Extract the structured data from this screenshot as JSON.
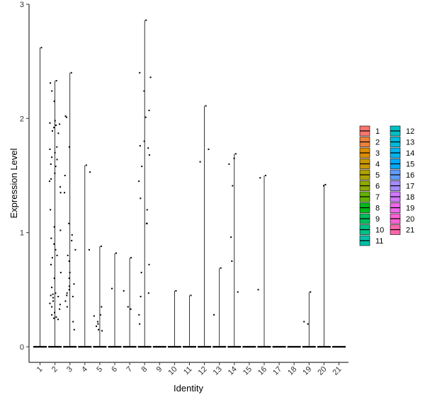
{
  "chart_data": {
    "type": "violin",
    "title": "",
    "xlabel": "Identity",
    "ylabel": "Expression Level",
    "ylim": [
      0,
      3
    ],
    "yticks": [
      0,
      1,
      2,
      3
    ],
    "grid": false,
    "legend_position": "right",
    "categories": [
      "1",
      "2",
      "3",
      "4",
      "5",
      "6",
      "7",
      "8",
      "9",
      "10",
      "11",
      "12",
      "13",
      "14",
      "15",
      "16",
      "17",
      "18",
      "19",
      "20",
      "21"
    ],
    "colors": [
      "#F8766D",
      "#EC8239",
      "#DB8E00",
      "#C79800",
      "#AEA200",
      "#8FAA00",
      "#64B200",
      "#00B81B",
      "#00BD5C",
      "#00C085",
      "#00C1A7",
      "#00BFC4",
      "#00BBDB",
      "#00B4EF",
      "#00A9FF",
      "#619CFF",
      "#A58AFF",
      "#D078FF",
      "#EF67EB",
      "#FD61D3",
      "#FF65AC"
    ],
    "max_values": [
      2.62,
      2.33,
      2.4,
      1.59,
      0.88,
      0.82,
      0.78,
      2.86,
      0.0,
      0.49,
      0.45,
      2.11,
      0.69,
      1.69,
      0.0,
      1.5,
      0.0,
      0.0,
      0.48,
      1.42,
      0.0
    ],
    "points": [
      [
        2.62
      ],
      [
        2.33,
        2.31,
        2.24,
        2.15,
        1.98,
        1.96,
        1.95,
        1.94,
        1.92,
        1.89,
        1.87,
        1.75,
        1.73,
        1.7,
        1.66,
        1.64,
        1.6,
        1.58,
        1.52,
        1.47,
        1.45,
        1.4,
        1.35,
        1.2,
        1.05,
        1.02,
        0.95,
        0.9,
        0.85,
        0.8,
        0.78,
        0.72,
        0.65,
        0.6,
        0.52,
        0.47,
        0.46,
        0.45,
        0.44,
        0.43,
        0.4,
        0.38,
        0.37,
        0.35,
        0.33,
        0.3,
        0.28,
        0.26,
        0.25,
        0.24
      ],
      [
        2.4,
        2.02,
        2.01,
        1.75,
        1.5,
        1.35,
        1.08,
        0.98,
        0.93,
        0.85,
        0.8,
        0.75,
        0.65,
        0.6,
        0.55,
        0.53,
        0.5,
        0.47,
        0.45,
        0.44,
        0.4,
        0.35,
        0.22,
        0.15
      ],
      [
        1.59,
        1.53,
        0.85
      ],
      [
        0.88,
        0.35,
        0.28,
        0.27,
        0.22,
        0.2,
        0.18,
        0.15,
        0.14
      ],
      [
        0.82,
        0.51
      ],
      [
        0.78,
        0.49,
        0.35,
        0.33
      ],
      [
        2.86,
        2.4,
        2.36,
        2.24,
        2.07,
        2.01,
        1.8,
        1.76,
        1.74,
        1.68,
        1.58,
        1.45,
        1.3,
        1.2,
        1.08,
        1.08,
        0.72,
        0.65,
        0.47,
        0.44,
        0.28,
        0.2
      ],
      [],
      [
        0.49
      ],
      [
        0.45
      ],
      [
        2.11,
        1.73,
        1.62
      ],
      [
        0.69,
        0.28
      ],
      [
        1.69,
        1.65,
        1.6,
        1.41,
        0.96,
        0.75,
        0.48
      ],
      [],
      [
        1.5,
        1.48,
        0.5
      ],
      [],
      [],
      [
        0.48,
        0.22,
        0.2
      ],
      [
        1.42,
        1.41
      ],
      []
    ]
  }
}
